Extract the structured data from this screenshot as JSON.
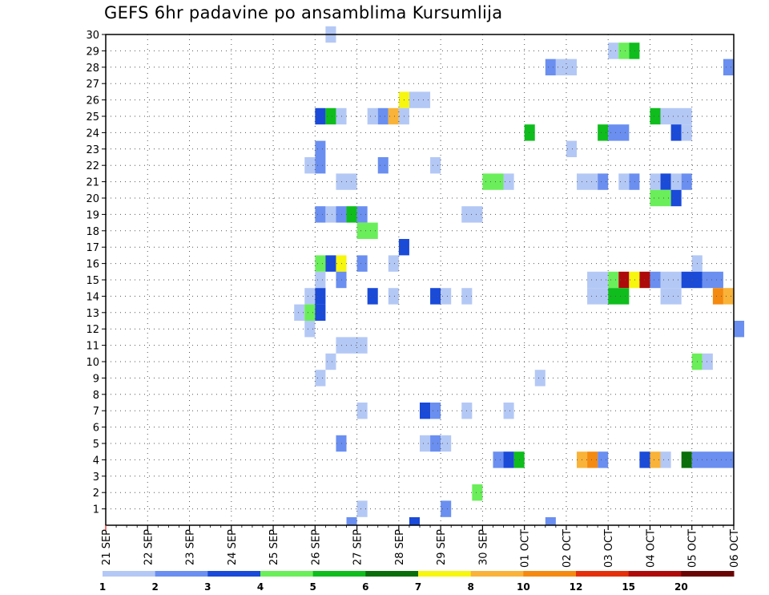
{
  "chart_data": {
    "type": "heatmap",
    "title": "GEFS 6hr padavine po ansamblima Kursumlija",
    "x_ticks": [
      "21 SEP",
      "22 SEP",
      "23 SEP",
      "24 SEP",
      "25 SEP",
      "26 SEP",
      "27 SEP",
      "28 SEP",
      "29 SEP",
      "30 SEP",
      "01 OCT",
      "02 OCT",
      "03 OCT",
      "04 OCT",
      "05 OCT",
      "06 OCT"
    ],
    "y_ticks": [
      "1",
      "2",
      "3",
      "4",
      "5",
      "6",
      "7",
      "8",
      "9",
      "10",
      "11",
      "12",
      "13",
      "14",
      "15",
      "16",
      "17",
      "18",
      "19",
      "20",
      "21",
      "22",
      "23",
      "24",
      "25",
      "26",
      "27",
      "28",
      "29",
      "30"
    ],
    "x_range": [
      "21 SEP 00",
      "06 OCT 00"
    ],
    "y_range": [
      0,
      30
    ],
    "time_step_hours": 6,
    "grid": true,
    "legend_placement": "bottom",
    "legend": {
      "labels": [
        "1",
        "2",
        "3",
        "4",
        "5",
        "6",
        "7",
        "8",
        "10",
        "12",
        "15",
        "20"
      ],
      "colors": [
        "#b4c8f5",
        "#6a8ff0",
        "#1a4ad8",
        "#6aee5a",
        "#0fbd1d",
        "#0a6e0a",
        "#f6f60f",
        "#f9b338",
        "#f58a10",
        "#e4300a",
        "#ae0a0a",
        "#6a0505"
      ]
    },
    "cells_format": "[ensemble_member, start_time, end_time, color_index]",
    "cells": [
      [
        30,
        "26 SEP 06",
        "26 SEP 12",
        0
      ],
      [
        29,
        "03 OCT 00",
        "03 OCT 06",
        0
      ],
      [
        29,
        "03 OCT 06",
        "03 OCT 12",
        3
      ],
      [
        29,
        "03 OCT 12",
        "03 OCT 18",
        4
      ],
      [
        28,
        "01 OCT 12",
        "01 OCT 18",
        1
      ],
      [
        28,
        "01 OCT 18",
        "02 OCT 06",
        0
      ],
      [
        28,
        "05 OCT 18",
        "06 OCT 00",
        1
      ],
      [
        26,
        "28 SEP 00",
        "28 SEP 06",
        6
      ],
      [
        26,
        "28 SEP 06",
        "28 SEP 18",
        0
      ],
      [
        25,
        "26 SEP 00",
        "26 SEP 06",
        2
      ],
      [
        25,
        "26 SEP 06",
        "26 SEP 12",
        4
      ],
      [
        25,
        "26 SEP 12",
        "26 SEP 18",
        0
      ],
      [
        25,
        "27 SEP 06",
        "27 SEP 12",
        0
      ],
      [
        25,
        "27 SEP 12",
        "27 SEP 18",
        1
      ],
      [
        25,
        "27 SEP 18",
        "28 SEP 00",
        7
      ],
      [
        25,
        "28 SEP 00",
        "28 SEP 06",
        0
      ],
      [
        25,
        "04 OCT 00",
        "04 OCT 06",
        4
      ],
      [
        25,
        "04 OCT 06",
        "05 OCT 00",
        0
      ],
      [
        24,
        "01 OCT 00",
        "01 OCT 06",
        4
      ],
      [
        24,
        "02 OCT 18",
        "03 OCT 00",
        4
      ],
      [
        24,
        "03 OCT 00",
        "03 OCT 12",
        1
      ],
      [
        24,
        "04 OCT 12",
        "04 OCT 18",
        2
      ],
      [
        24,
        "04 OCT 18",
        "05 OCT 00",
        0
      ],
      [
        23,
        "26 SEP 00",
        "26 SEP 06",
        1
      ],
      [
        23,
        "02 OCT 00",
        "02 OCT 06",
        0
      ],
      [
        22,
        "25 SEP 18",
        "26 SEP 00",
        0
      ],
      [
        22,
        "26 SEP 00",
        "26 SEP 06",
        1
      ],
      [
        22,
        "27 SEP 12",
        "27 SEP 18",
        1
      ],
      [
        22,
        "28 SEP 18",
        "29 SEP 00",
        0
      ],
      [
        21,
        "26 SEP 12",
        "27 SEP 00",
        0
      ],
      [
        21,
        "30 SEP 00",
        "30 SEP 12",
        3
      ],
      [
        21,
        "30 SEP 12",
        "30 SEP 18",
        0
      ],
      [
        21,
        "02 OCT 06",
        "02 OCT 18",
        0
      ],
      [
        21,
        "02 OCT 18",
        "03 OCT 00",
        1
      ],
      [
        21,
        "03 OCT 06",
        "03 OCT 12",
        0
      ],
      [
        21,
        "03 OCT 12",
        "03 OCT 18",
        1
      ],
      [
        21,
        "04 OCT 00",
        "04 OCT 06",
        0
      ],
      [
        21,
        "04 OCT 06",
        "04 OCT 12",
        2
      ],
      [
        21,
        "04 OCT 12",
        "04 OCT 18",
        0
      ],
      [
        21,
        "04 OCT 18",
        "05 OCT 00",
        1
      ],
      [
        20,
        "04 OCT 00",
        "04 OCT 12",
        3
      ],
      [
        20,
        "04 OCT 12",
        "04 OCT 18",
        2
      ],
      [
        19,
        "26 SEP 00",
        "26 SEP 06",
        1
      ],
      [
        19,
        "26 SEP 06",
        "26 SEP 12",
        0
      ],
      [
        19,
        "26 SEP 12",
        "26 SEP 18",
        1
      ],
      [
        19,
        "26 SEP 18",
        "27 SEP 00",
        4
      ],
      [
        19,
        "27 SEP 00",
        "27 SEP 06",
        1
      ],
      [
        19,
        "29 SEP 12",
        "30 SEP 00",
        0
      ],
      [
        18,
        "27 SEP 00",
        "27 SEP 12",
        3
      ],
      [
        17,
        "28 SEP 00",
        "28 SEP 06",
        2
      ],
      [
        16,
        "26 SEP 00",
        "26 SEP 06",
        3
      ],
      [
        16,
        "26 SEP 06",
        "26 SEP 12",
        2
      ],
      [
        16,
        "26 SEP 12",
        "26 SEP 18",
        6
      ],
      [
        16,
        "27 SEP 00",
        "27 SEP 06",
        1
      ],
      [
        16,
        "27 SEP 18",
        "28 SEP 00",
        0
      ],
      [
        16,
        "05 OCT 00",
        "05 OCT 06",
        0
      ],
      [
        15,
        "26 SEP 00",
        "26 SEP 06",
        0
      ],
      [
        15,
        "26 SEP 12",
        "26 SEP 18",
        1
      ],
      [
        15,
        "02 OCT 12",
        "03 OCT 00",
        0
      ],
      [
        15,
        "03 OCT 00",
        "03 OCT 06",
        3
      ],
      [
        15,
        "03 OCT 06",
        "03 OCT 12",
        10
      ],
      [
        15,
        "03 OCT 12",
        "03 OCT 18",
        6
      ],
      [
        15,
        "03 OCT 18",
        "04 OCT 00",
        10
      ],
      [
        15,
        "04 OCT 00",
        "04 OCT 06",
        1
      ],
      [
        15,
        "04 OCT 06",
        "04 OCT 18",
        0
      ],
      [
        15,
        "04 OCT 18",
        "05 OCT 06",
        2
      ],
      [
        15,
        "05 OCT 06",
        "05 OCT 18",
        1
      ],
      [
        14,
        "25 SEP 18",
        "26 SEP 00",
        0
      ],
      [
        14,
        "26 SEP 00",
        "26 SEP 06",
        2
      ],
      [
        14,
        "27 SEP 06",
        "27 SEP 12",
        2
      ],
      [
        14,
        "27 SEP 18",
        "28 SEP 00",
        0
      ],
      [
        14,
        "28 SEP 18",
        "29 SEP 00",
        2
      ],
      [
        14,
        "29 SEP 00",
        "29 SEP 06",
        0
      ],
      [
        14,
        "29 SEP 12",
        "29 SEP 18",
        0
      ],
      [
        14,
        "02 OCT 12",
        "03 OCT 00",
        0
      ],
      [
        14,
        "03 OCT 00",
        "03 OCT 12",
        4
      ],
      [
        14,
        "04 OCT 06",
        "04 OCT 18",
        0
      ],
      [
        14,
        "05 OCT 12",
        "05 OCT 18",
        8
      ],
      [
        14,
        "05 OCT 18",
        "06 OCT 00",
        7
      ],
      [
        13,
        "25 SEP 12",
        "25 SEP 18",
        0
      ],
      [
        13,
        "25 SEP 18",
        "26 SEP 00",
        3
      ],
      [
        13,
        "26 SEP 00",
        "26 SEP 06",
        2
      ],
      [
        12,
        "25 SEP 18",
        "26 SEP 00",
        0
      ],
      [
        12,
        "06 OCT 00",
        "06 OCT 06",
        1
      ],
      [
        11,
        "26 SEP 12",
        "27 SEP 06",
        0
      ],
      [
        10,
        "26 SEP 06",
        "26 SEP 12",
        0
      ],
      [
        10,
        "05 OCT 00",
        "05 OCT 06",
        3
      ],
      [
        10,
        "05 OCT 06",
        "05 OCT 12",
        0
      ],
      [
        9,
        "26 SEP 00",
        "26 SEP 06",
        0
      ],
      [
        9,
        "01 OCT 06",
        "01 OCT 12",
        0
      ],
      [
        7,
        "27 SEP 00",
        "27 SEP 06",
        0
      ],
      [
        7,
        "28 SEP 12",
        "28 SEP 18",
        2
      ],
      [
        7,
        "28 SEP 18",
        "29 SEP 00",
        1
      ],
      [
        7,
        "29 SEP 12",
        "29 SEP 18",
        0
      ],
      [
        7,
        "30 SEP 12",
        "30 SEP 18",
        0
      ],
      [
        5,
        "26 SEP 12",
        "26 SEP 18",
        1
      ],
      [
        5,
        "28 SEP 12",
        "28 SEP 18",
        0
      ],
      [
        5,
        "28 SEP 18",
        "29 SEP 00",
        1
      ],
      [
        5,
        "29 SEP 00",
        "29 SEP 06",
        0
      ],
      [
        4,
        "30 SEP 06",
        "30 SEP 12",
        1
      ],
      [
        4,
        "30 SEP 12",
        "30 SEP 18",
        2
      ],
      [
        4,
        "30 SEP 18",
        "01 OCT 00",
        4
      ],
      [
        4,
        "02 OCT 06",
        "02 OCT 12",
        7
      ],
      [
        4,
        "02 OCT 12",
        "02 OCT 18",
        8
      ],
      [
        4,
        "02 OCT 18",
        "03 OCT 00",
        1
      ],
      [
        4,
        "03 OCT 18",
        "04 OCT 00",
        2
      ],
      [
        4,
        "04 OCT 00",
        "04 OCT 06",
        7
      ],
      [
        4,
        "04 OCT 06",
        "04 OCT 12",
        0
      ],
      [
        4,
        "04 OCT 18",
        "05 OCT 00",
        5
      ],
      [
        4,
        "05 OCT 00",
        "06 OCT 00",
        1
      ],
      [
        2,
        "29 SEP 18",
        "30 SEP 00",
        3
      ],
      [
        1,
        "27 SEP 00",
        "27 SEP 06",
        0
      ],
      [
        1,
        "29 SEP 00",
        "29 SEP 06",
        1
      ],
      [
        0,
        "26 SEP 18",
        "27 SEP 00",
        1
      ],
      [
        0,
        "28 SEP 06",
        "28 SEP 12",
        2
      ],
      [
        0,
        "01 OCT 12",
        "01 OCT 18",
        1
      ]
    ]
  }
}
